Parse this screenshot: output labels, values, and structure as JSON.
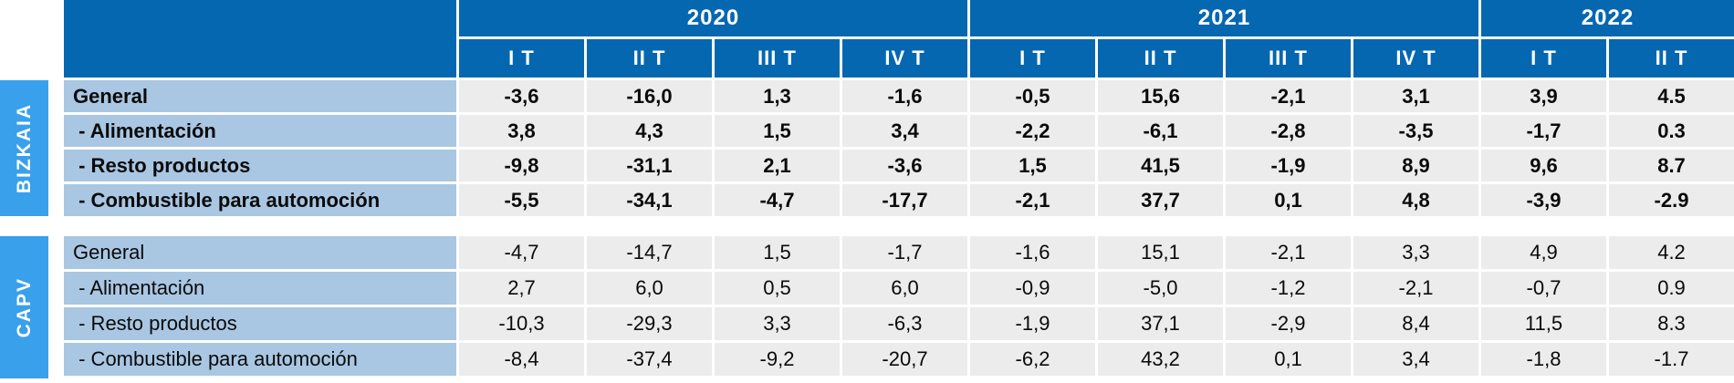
{
  "colors": {
    "header_blue": "#0667b1",
    "side_label_blue": "#39a0ec",
    "row_label_blue": "#a9c7e2",
    "data_cell_gray": "#ececec",
    "text_white": "#ffffff",
    "text_black": "#0a0a0a"
  },
  "table": {
    "years": [
      {
        "label": "2020",
        "quarters": [
          "I T",
          "II T",
          "III T",
          "IV T"
        ]
      },
      {
        "label": "2021",
        "quarters": [
          "I T",
          "II T",
          "III T",
          "IV T"
        ]
      },
      {
        "label": "2022",
        "quarters": [
          "I T",
          "II T"
        ]
      }
    ],
    "sections": [
      {
        "region": "BIZKAIA",
        "bold": true,
        "rows": [
          {
            "label": "General",
            "values": [
              "-3,6",
              "-16,0",
              "1,3",
              "-1,6",
              "-0,5",
              "15,6",
              "-2,1",
              "3,1",
              "3,9",
              "4.5"
            ]
          },
          {
            "label": " - Alimentación",
            "values": [
              "3,8",
              "4,3",
              "1,5",
              "3,4",
              "-2,2",
              "-6,1",
              "-2,8",
              "-3,5",
              "-1,7",
              "0.3"
            ]
          },
          {
            "label": " - Resto productos",
            "values": [
              "-9,8",
              "-31,1",
              "2,1",
              "-3,6",
              "1,5",
              "41,5",
              "-1,9",
              "8,9",
              "9,6",
              "8.7"
            ]
          },
          {
            "label": " - Combustible para automoción",
            "values": [
              "-5,5",
              "-34,1",
              "-4,7",
              "-17,7",
              "-2,1",
              "37,7",
              "0,1",
              "4,8",
              "-3,9",
              "-2.9"
            ]
          }
        ]
      },
      {
        "region": "CAPV",
        "bold": false,
        "rows": [
          {
            "label": "General",
            "values": [
              "-4,7",
              "-14,7",
              "1,5",
              "-1,7",
              "-1,6",
              "15,1",
              "-2,1",
              "3,3",
              "4,9",
              "4.2"
            ]
          },
          {
            "label": " - Alimentación",
            "values": [
              "2,7",
              "6,0",
              "0,5",
              "6,0",
              "-0,9",
              "-5,0",
              "-1,2",
              "-2,1",
              "-0,7",
              "0.9"
            ]
          },
          {
            "label": " - Resto productos",
            "values": [
              "-10,3",
              "-29,3",
              "3,3",
              "-6,3",
              "-1,9",
              "37,1",
              "-2,9",
              "8,4",
              "11,5",
              "8.3"
            ]
          },
          {
            "label": " - Combustible para automoción",
            "values": [
              "-8,4",
              "-37,4",
              "-9,2",
              "-20,7",
              "-6,2",
              "43,2",
              "0,1",
              "3,4",
              "-1,8",
              "-1.7"
            ]
          }
        ]
      }
    ]
  },
  "chart_data": {
    "type": "table",
    "columns": [
      "2020 I T",
      "2020 II T",
      "2020 III T",
      "2020 IV T",
      "2021 I T",
      "2021 II T",
      "2021 III T",
      "2021 IV T",
      "2022 I T",
      "2022 II T"
    ],
    "rows": [
      {
        "group": "BIZKAIA",
        "label": "General",
        "values": [
          -3.6,
          -16.0,
          1.3,
          -1.6,
          -0.5,
          15.6,
          -2.1,
          3.1,
          3.9,
          4.5
        ]
      },
      {
        "group": "BIZKAIA",
        "label": "Alimentación",
        "values": [
          3.8,
          4.3,
          1.5,
          3.4,
          -2.2,
          -6.1,
          -2.8,
          -3.5,
          -1.7,
          0.3
        ]
      },
      {
        "group": "BIZKAIA",
        "label": "Resto productos",
        "values": [
          -9.8,
          -31.1,
          2.1,
          -3.6,
          1.5,
          41.5,
          -1.9,
          8.9,
          9.6,
          8.7
        ]
      },
      {
        "group": "BIZKAIA",
        "label": "Combustible para automoción",
        "values": [
          -5.5,
          -34.1,
          -4.7,
          -17.7,
          -2.1,
          37.7,
          0.1,
          4.8,
          -3.9,
          -2.9
        ]
      },
      {
        "group": "CAPV",
        "label": "General",
        "values": [
          -4.7,
          -14.7,
          1.5,
          -1.7,
          -1.6,
          15.1,
          -2.1,
          3.3,
          4.9,
          4.2
        ]
      },
      {
        "group": "CAPV",
        "label": "Alimentación",
        "values": [
          2.7,
          6.0,
          0.5,
          6.0,
          -0.9,
          -5.0,
          -1.2,
          -2.1,
          -0.7,
          0.9
        ]
      },
      {
        "group": "CAPV",
        "label": "Resto productos",
        "values": [
          -10.3,
          -29.3,
          3.3,
          -6.3,
          -1.9,
          37.1,
          -2.9,
          8.4,
          11.5,
          8.3
        ]
      },
      {
        "group": "CAPV",
        "label": "Combustible para automoción",
        "values": [
          -8.4,
          -37.4,
          -9.2,
          -20.7,
          -6.2,
          43.2,
          0.1,
          3.4,
          -1.8,
          -1.7
        ]
      }
    ]
  }
}
